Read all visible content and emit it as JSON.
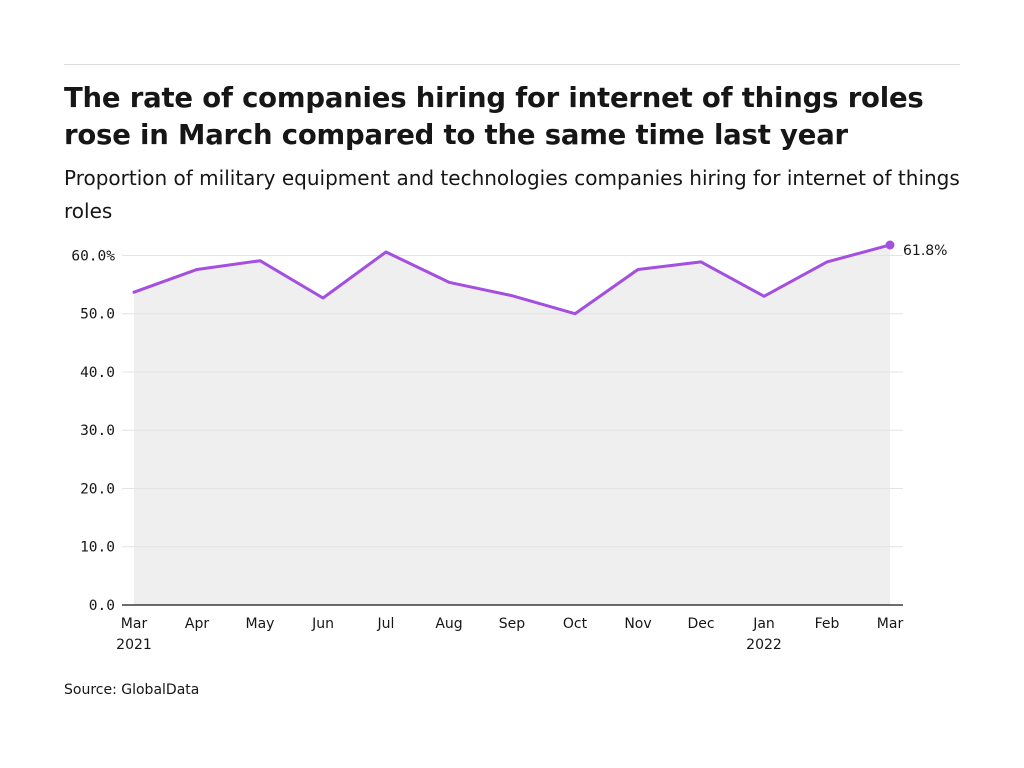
{
  "title": "The rate of companies hiring for internet of things roles rose in March compared to the same time last year",
  "subtitle": "Proportion of military equipment and technologies companies hiring for internet of things roles",
  "source": "Source: GlobalData",
  "colors": {
    "line": "#a34fe0",
    "area": "#efeff0",
    "grid": "#e4e4e4",
    "axis": "#161616"
  },
  "chart_data": {
    "type": "area",
    "x": [
      "Mar",
      "Apr",
      "May",
      "Jun",
      "Jul",
      "Aug",
      "Sep",
      "Oct",
      "Nov",
      "Dec",
      "Jan",
      "Feb",
      "Mar"
    ],
    "x_sublabels": [
      "2021",
      "",
      "",
      "",
      "",
      "",
      "",
      "",
      "",
      "",
      "2022",
      "",
      ""
    ],
    "series": [
      {
        "values": [
          53.7,
          57.6,
          59.1,
          52.7,
          60.6,
          55.4,
          53.1,
          50.0,
          57.6,
          58.9,
          53.0,
          58.9,
          61.8
        ]
      }
    ],
    "ylim": [
      0,
      61.8
    ],
    "yticks": [
      0,
      10,
      20,
      30,
      40,
      50,
      60
    ],
    "ytick_labels": [
      "0.0",
      "10.0",
      "20.0",
      "30.0",
      "40.0",
      "50.0",
      "60.0%"
    ],
    "end_label": "61.8%",
    "grid": true,
    "xlabel": "",
    "ylabel": ""
  }
}
